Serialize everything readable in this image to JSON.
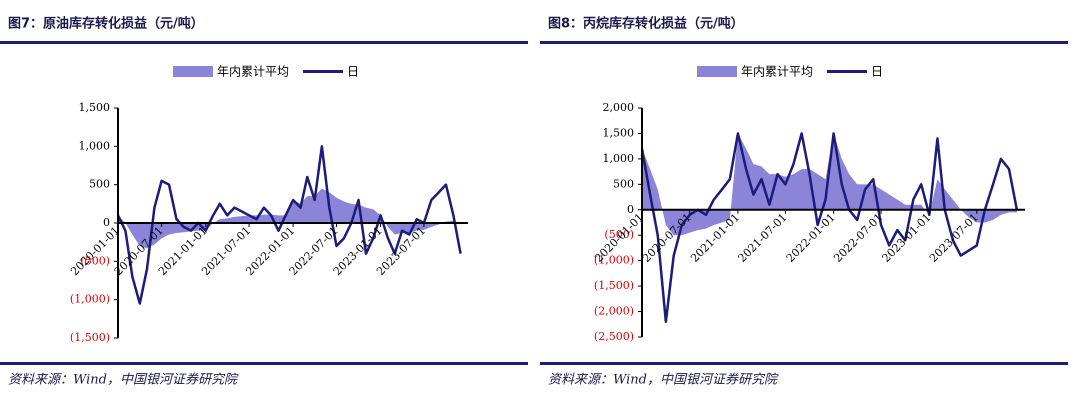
{
  "chart_data": [
    {
      "type": "line",
      "title": "图7：原油库存转化损益（元/吨）",
      "source": "资料来源：Wind，中国银河证券研究院",
      "x": [
        "2020-01-01",
        "2020-02-01",
        "2020-03-01",
        "2020-04-01",
        "2020-05-01",
        "2020-06-01",
        "2020-07-01",
        "2020-08-01",
        "2020-09-01",
        "2020-10-01",
        "2020-11-01",
        "2020-12-01",
        "2021-01-01",
        "2021-02-01",
        "2021-03-01",
        "2021-04-01",
        "2021-05-01",
        "2021-06-01",
        "2021-07-01",
        "2021-08-01",
        "2021-09-01",
        "2021-10-01",
        "2021-11-01",
        "2021-12-01",
        "2022-01-01",
        "2022-02-01",
        "2022-03-01",
        "2022-04-01",
        "2022-05-01",
        "2022-06-01",
        "2022-07-01",
        "2022-08-01",
        "2022-09-01",
        "2022-10-01",
        "2022-11-01",
        "2022-12-01",
        "2023-01-01",
        "2023-02-01",
        "2023-03-01",
        "2023-04-01",
        "2023-05-01",
        "2023-06-01",
        "2023-07-01",
        "2023-08-01",
        "2023-09-01",
        "2023-10-01",
        "2023-11-01",
        "2023-12-01"
      ],
      "series": [
        {
          "name": "年内累计平均",
          "kind": "area",
          "color": "#8b84d8",
          "values": [
            100,
            0,
            -150,
            -300,
            -330,
            -280,
            -200,
            -150,
            -130,
            -120,
            -110,
            -100,
            -100,
            0,
            50,
            60,
            80,
            90,
            100,
            100,
            110,
            110,
            100,
            100,
            300,
            250,
            350,
            350,
            450,
            400,
            330,
            280,
            250,
            240,
            200,
            180,
            100,
            -50,
            -150,
            -130,
            -130,
            -100,
            -90,
            -50,
            -20,
            20,
            30,
            0
          ]
        },
        {
          "name": "日",
          "kind": "line",
          "color": "#1c1c7a",
          "values": [
            100,
            -100,
            -700,
            -1050,
            -600,
            200,
            550,
            500,
            50,
            -50,
            -100,
            0,
            -100,
            100,
            250,
            100,
            200,
            150,
            100,
            50,
            200,
            100,
            -100,
            100,
            300,
            200,
            600,
            300,
            1000,
            200,
            -300,
            -200,
            0,
            300,
            -400,
            -200,
            100,
            -200,
            -400,
            -100,
            -150,
            50,
            0,
            300,
            400,
            500,
            100,
            -400
          ]
        }
      ],
      "xlim": [
        "2020-01-01",
        "2024-01-01"
      ],
      "xticks": [
        "2020-01-01",
        "2020-07-01",
        "2021-01-01",
        "2021-07-01",
        "2022-01-01",
        "2022-07-01",
        "2023-01-01",
        "2023-07-01"
      ],
      "ylim": [
        -1500,
        1500
      ],
      "yticks": [
        {
          "value": 1500,
          "label": "1,500"
        },
        {
          "value": 1000,
          "label": "1,000"
        },
        500,
        0,
        {
          "value": -500,
          "label": "(500)"
        },
        {
          "value": -1000,
          "label": "(1,000)"
        },
        {
          "value": -1500,
          "label": "(1,500)"
        }
      ],
      "negative_label_color": "#e00000"
    },
    {
      "type": "line",
      "title": "图8：丙烷库存转化损益（元/吨）",
      "source": "资料来源：Wind，中国银河证券研究院",
      "x": [
        "2020-01-01",
        "2020-02-01",
        "2020-03-01",
        "2020-04-01",
        "2020-05-01",
        "2020-06-01",
        "2020-07-01",
        "2020-08-01",
        "2020-09-01",
        "2020-10-01",
        "2020-11-01",
        "2020-12-01",
        "2021-01-01",
        "2021-02-01",
        "2021-03-01",
        "2021-04-01",
        "2021-05-01",
        "2021-06-01",
        "2021-07-01",
        "2021-08-01",
        "2021-09-01",
        "2021-10-01",
        "2021-11-01",
        "2021-12-01",
        "2022-01-01",
        "2022-02-01",
        "2022-03-01",
        "2022-04-01",
        "2022-05-01",
        "2022-06-01",
        "2022-07-01",
        "2022-08-01",
        "2022-09-01",
        "2022-10-01",
        "2022-11-01",
        "2022-12-01",
        "2023-01-01",
        "2023-02-01",
        "2023-03-01",
        "2023-04-01",
        "2023-05-01",
        "2023-06-01",
        "2023-07-01",
        "2023-08-01",
        "2023-09-01",
        "2023-10-01",
        "2023-11-01",
        "2023-12-01"
      ],
      "series": [
        {
          "name": "年内累计平均",
          "kind": "area",
          "color": "#8b84d8",
          "values": [
            1200,
            800,
            400,
            -300,
            -500,
            -500,
            -450,
            -400,
            -370,
            -300,
            -250,
            -200,
            1500,
            1200,
            900,
            850,
            700,
            700,
            650,
            700,
            800,
            800,
            700,
            600,
            1500,
            1000,
            700,
            500,
            500,
            500,
            400,
            300,
            200,
            100,
            100,
            100,
            -100,
            600,
            400,
            200,
            0,
            -150,
            -250,
            -250,
            -200,
            -100,
            -50,
            -50
          ]
        },
        {
          "name": "日",
          "kind": "line",
          "color": "#1c1c7a",
          "values": [
            1200,
            300,
            -500,
            -2200,
            -900,
            -300,
            -100,
            0,
            -100,
            200,
            400,
            600,
            1500,
            800,
            300,
            600,
            100,
            700,
            500,
            900,
            1500,
            700,
            -300,
            200,
            1500,
            500,
            0,
            -200,
            400,
            600,
            -300,
            -700,
            -400,
            -600,
            200,
            500,
            -100,
            1400,
            0,
            -600,
            -900,
            -800,
            -700,
            0,
            500,
            1000,
            800,
            0
          ]
        }
      ],
      "xlim": [
        "2020-01-01",
        "2024-01-01"
      ],
      "xticks": [
        "2020-01-01",
        "2020-07-01",
        "2021-01-01",
        "2021-07-01",
        "2022-01-01",
        "2022-07-01",
        "2023-01-01",
        "2023-07-01"
      ],
      "ylim": [
        -2500,
        2000
      ],
      "yticks": [
        {
          "value": 2000,
          "label": "2,000"
        },
        {
          "value": 1500,
          "label": "1,500"
        },
        {
          "value": 1000,
          "label": "1,000"
        },
        500,
        0,
        {
          "value": -500,
          "label": "(500)"
        },
        {
          "value": -1000,
          "label": "(1,000)"
        },
        {
          "value": -1500,
          "label": "(1,500)"
        },
        {
          "value": -2000,
          "label": "(2,000)"
        },
        {
          "value": -2500,
          "label": "(2,500)"
        }
      ],
      "negative_label_color": "#e00000"
    }
  ]
}
